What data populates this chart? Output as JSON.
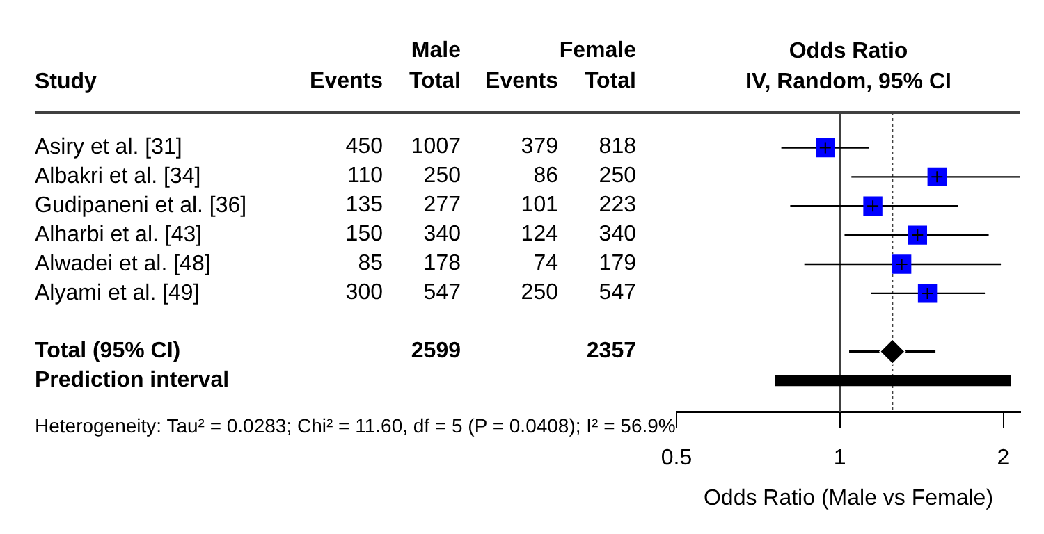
{
  "chart_data": [
    {
      "type": "other",
      "categories": [
        "Events",
        "Total",
        "Events",
        "Total"
      ],
      "annotations": [
        "Male",
        "Female"
      ],
      "cell_labels": [
        [
          "450",
          "1007",
          "379",
          "818"
        ],
        [
          "110",
          "250",
          "86",
          "250"
        ],
        [
          "135",
          "277",
          "101",
          "223"
        ],
        [
          "150",
          "340",
          "124",
          "340"
        ],
        [
          "85",
          "178",
          "74",
          "179"
        ],
        [
          "300",
          "547",
          "250",
          "547"
        ],
        [
          null,
          null,
          null,
          null
        ],
        [
          null,
          "2599",
          null,
          "2357"
        ],
        [
          null,
          null,
          null,
          null
        ]
      ]
    },
    {
      "type": "scatter",
      "orientation": "horizontal",
      "title": "Odds Ratio",
      "subtitle": "IV, Random, 95% CI",
      "xlabel": "Odds Ratio (Male vs Female)",
      "ylabel": "Study",
      "categories": [
        "Asiry et al. [31]",
        "Albakri et al. [34]",
        "Gudipaneni et al. [36]",
        "Alharbi et al. [43]",
        "Alwadei et al. [48]",
        "Alyami et al. [49]",
        null,
        "Total (95% CI)",
        "Prediction interval"
      ],
      "series": [
        {
          "color": "#0000ff",
          "marker": "square",
          "values": [
            0.94,
            1.51,
            1.15,
            1.39,
            1.3,
            1.45,
            null,
            null,
            null
          ],
          "errors": [
            [
              0.78,
              1.13
            ],
            [
              1.05,
              2.15
            ],
            [
              0.81,
              1.65
            ],
            [
              1.02,
              1.88
            ],
            [
              0.86,
              1.98
            ],
            [
              1.14,
              1.85
            ],
            null,
            null,
            null
          ]
        },
        {
          "color": "#000000",
          "marker": "diamond",
          "values": [
            null,
            null,
            null,
            null,
            null,
            null,
            null,
            1.25,
            null
          ],
          "errors": [
            null,
            null,
            null,
            null,
            null,
            null,
            null,
            [
              1.04,
              1.5
            ],
            null
          ]
        },
        {
          "type": "bar",
          "color": "#000000",
          "base": [
            null,
            null,
            null,
            null,
            null,
            null,
            null,
            null,
            0.76
          ],
          "values": [
            null,
            null,
            null,
            null,
            null,
            null,
            null,
            null,
            1.3
          ]
        }
      ],
      "log": "x",
      "xlim": [
        0.5,
        2.15
      ],
      "xticks": [
        0.5,
        1,
        2
      ],
      "grid": false,
      "legend": false,
      "tick_labels": "x",
      "ref_lines": [
        {
          "axis": "x",
          "value": 1,
          "color": "#404040"
        },
        {
          "axis": "x",
          "value": 1.25,
          "color": "#404040",
          "line_style": "dotted"
        }
      ],
      "annotations": [
        "Heterogeneity: Tau² = 0.0283; Chi² = 11.60, df = 5 (P = 0.0408); I² = 56.9%"
      ]
    }
  ]
}
